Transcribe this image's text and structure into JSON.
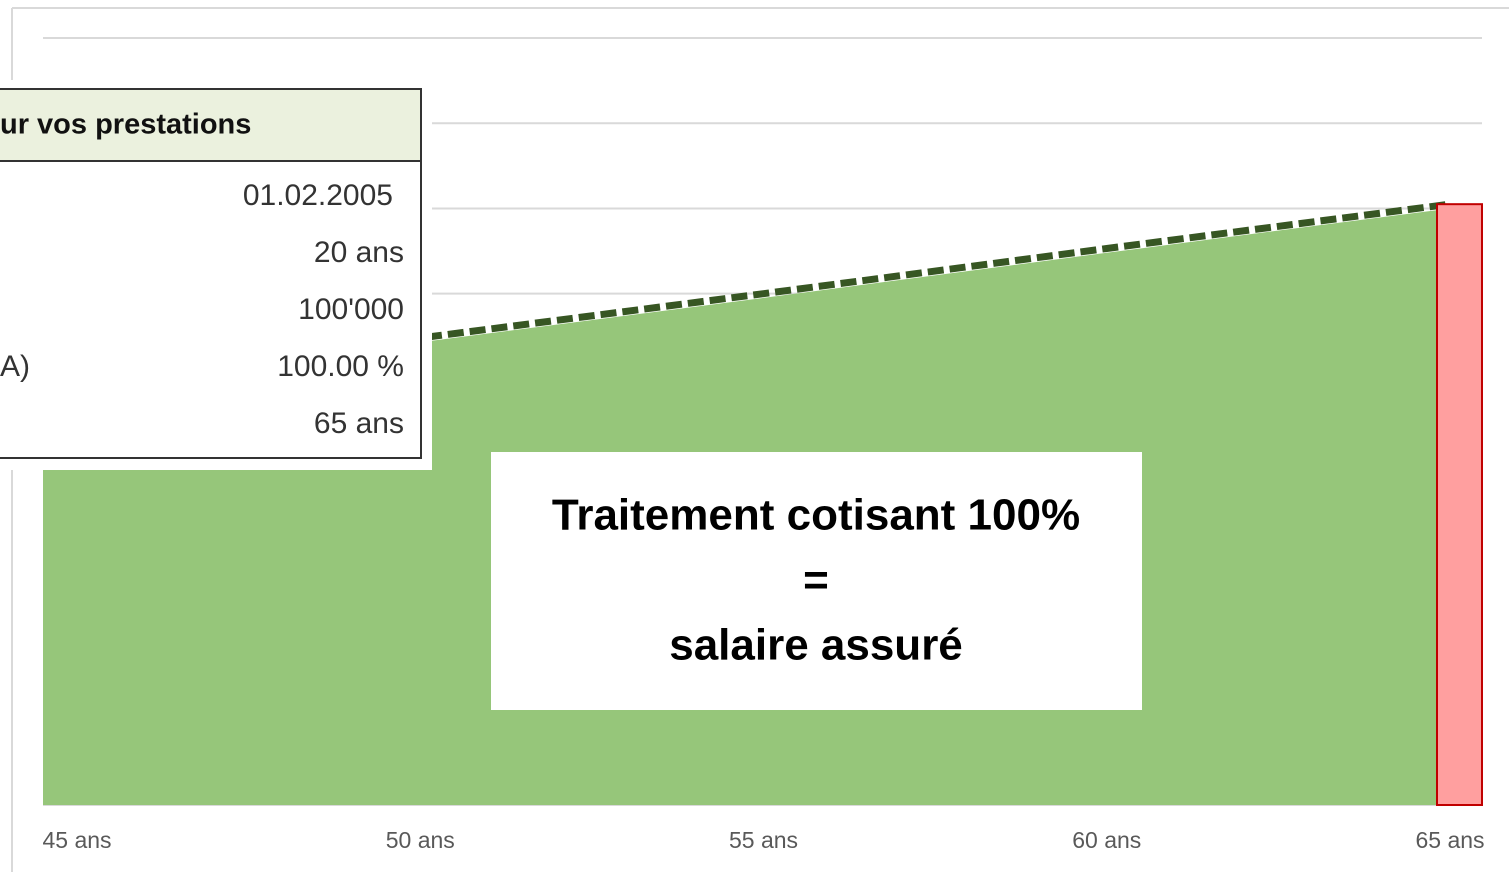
{
  "chart_data": {
    "type": "area",
    "x": [
      45,
      50,
      55,
      60,
      65
    ],
    "xticks": [
      {
        "value": 45,
        "label": "45 ans"
      },
      {
        "value": 50,
        "label": "50 ans"
      },
      {
        "value": 55,
        "label": "55 ans"
      },
      {
        "value": 60,
        "label": "60 ans"
      },
      {
        "value": 65,
        "label": "65 ans"
      }
    ],
    "ylim": [
      0,
      9
    ],
    "yticks": [
      0,
      1,
      2,
      3,
      4,
      5,
      6,
      7,
      8,
      9
    ],
    "grid": true,
    "series": [
      {
        "type": "area",
        "color": "#96c67a",
        "values": [
          4.9,
          5.43,
          5.95,
          6.48,
          7.0
        ]
      },
      {
        "type": "line",
        "dashed": true,
        "color": "#375623",
        "values": [
          4.95,
          5.48,
          6.0,
          6.53,
          7.05
        ]
      },
      {
        "type": "bar",
        "color": "#ff9f9f",
        "edge": "#c00000",
        "x": [
          65
        ],
        "values": [
          7.05
        ]
      }
    ],
    "annotation": [
      "Traitement cotisant 100%",
      "=",
      "salaire assuré"
    ]
  },
  "table": {
    "header": "ur vos prestations",
    "rows": [
      {
        "value": "01.02.2005"
      },
      {
        "value": "20 ans"
      },
      {
        "value": "100'000"
      },
      {
        "label": "A)",
        "value": "100.00 %"
      },
      {
        "value": "65 ans"
      }
    ]
  }
}
